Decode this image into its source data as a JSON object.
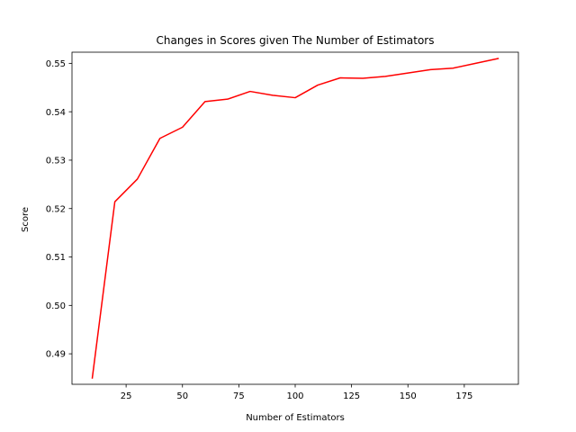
{
  "chart_data": {
    "type": "line",
    "title": "Changes in Scores given The Number of Estimators",
    "xlabel": "Number of Estimators",
    "ylabel": "Score",
    "xlim": [
      1,
      199
    ],
    "ylim": [
      0.4837,
      0.5523
    ],
    "xticks": [
      25,
      50,
      75,
      100,
      125,
      150,
      175
    ],
    "yticks": [
      0.49,
      0.5,
      0.51,
      0.52,
      0.53,
      0.54,
      0.55
    ],
    "xtick_labels": [
      "25",
      "50",
      "75",
      "100",
      "125",
      "150",
      "175"
    ],
    "ytick_labels": [
      "0.49",
      "0.50",
      "0.51",
      "0.52",
      "0.53",
      "0.54",
      "0.55"
    ],
    "grid": false,
    "series": [
      {
        "color": "#ff0000",
        "x": [
          10,
          20,
          30,
          40,
          50,
          60,
          70,
          80,
          90,
          100,
          110,
          120,
          130,
          140,
          150,
          160,
          170,
          180,
          190
        ],
        "y": [
          0.485,
          0.5214,
          0.5261,
          0.5345,
          0.5368,
          0.5421,
          0.5426,
          0.5442,
          0.5434,
          0.5429,
          0.5455,
          0.547,
          0.5469,
          0.5473,
          0.548,
          0.5487,
          0.549,
          0.55,
          0.551
        ]
      }
    ]
  }
}
